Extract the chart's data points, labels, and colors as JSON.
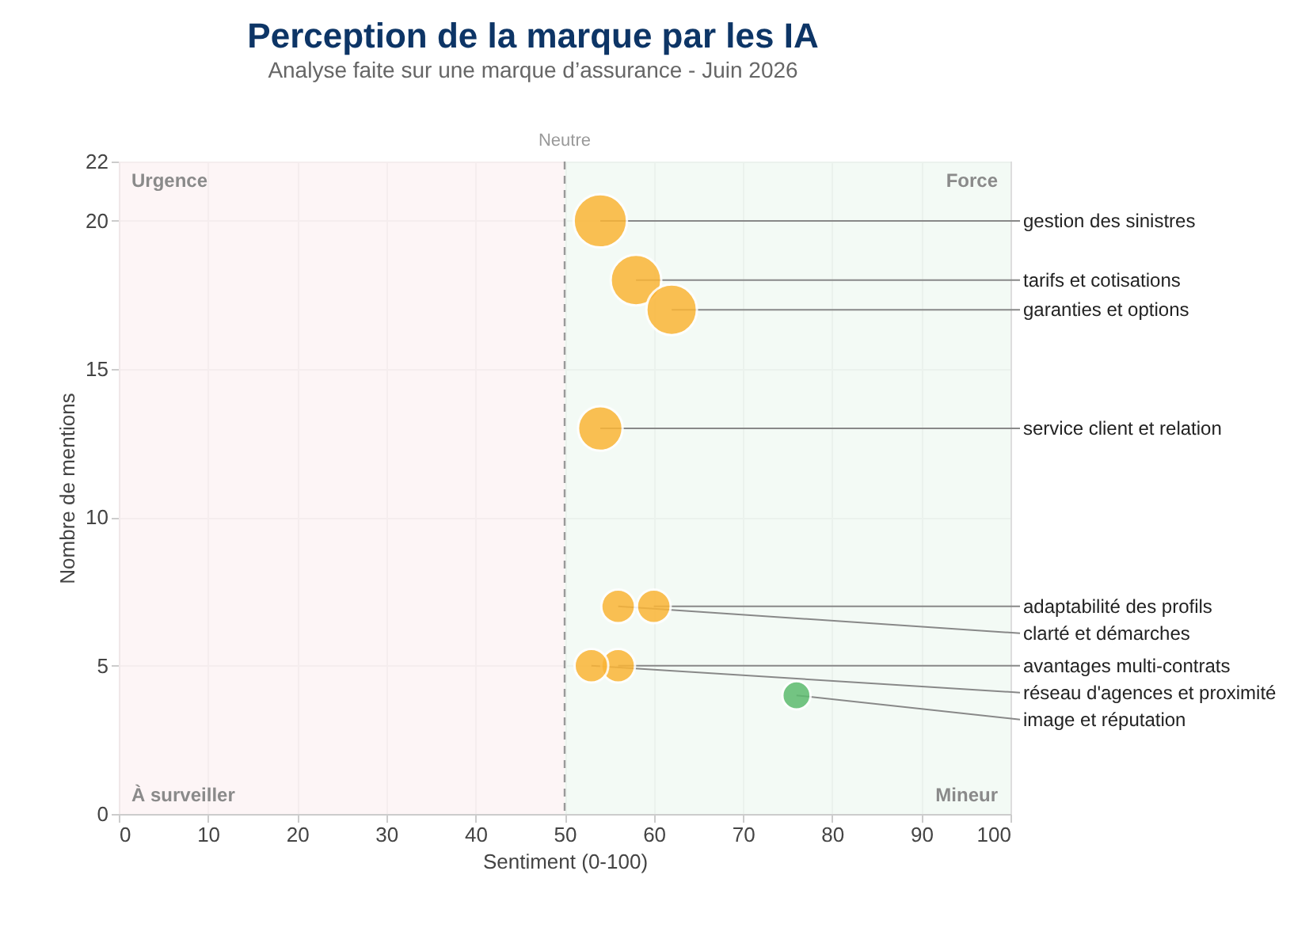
{
  "chart_data": {
    "type": "bubble",
    "title": "Perception de la marque par les IA",
    "subtitle": "Analyse faite sur une marque d’assurance - Juin 2026",
    "xlabel": "Sentiment (0-100)",
    "ylabel": "Nombre de mentions",
    "xlim": [
      0,
      100
    ],
    "xticks": [
      0,
      10,
      20,
      30,
      40,
      50,
      60,
      70,
      80,
      90,
      100
    ],
    "ylim": [
      0,
      22
    ],
    "yticks": [
      0,
      5,
      10,
      15,
      20,
      22
    ],
    "grid": true,
    "legend": false,
    "marker": "circle",
    "series": [
      {
        "name": "gestion des sinistres",
        "color": "#fbb536",
        "x": [
          54
        ],
        "values": [
          20
        ],
        "sizes": [
          1
        ]
      },
      {
        "name": "tarifs et cotisations",
        "color": "#fbb536",
        "x": [
          58
        ],
        "values": [
          18
        ],
        "sizes": [
          0.9
        ]
      },
      {
        "name": "garanties et options",
        "color": "#fbb536",
        "x": [
          62
        ],
        "values": [
          17
        ],
        "sizes": [
          0.9
        ]
      },
      {
        "name": "service client et relation",
        "color": "#fbb536",
        "x": [
          54
        ],
        "values": [
          13
        ],
        "sizes": [
          0.7
        ]
      },
      {
        "name": "adaptabilité des profils",
        "color": "#fbb536",
        "x": [
          60
        ],
        "values": [
          7
        ],
        "sizes": [
          0.4
        ]
      },
      {
        "name": "clarté et démarches",
        "color": "#fbb536",
        "x": [
          56
        ],
        "values": [
          7
        ],
        "sizes": [
          0.4
        ]
      },
      {
        "name": "avantages multi-contrats",
        "color": "#fbb536",
        "x": [
          56
        ],
        "values": [
          5
        ],
        "sizes": [
          0.4
        ]
      },
      {
        "name": "réseau d'agences et proximité",
        "color": "#fbb536",
        "x": [
          53
        ],
        "values": [
          5
        ],
        "sizes": [
          0.4
        ]
      },
      {
        "name": "image et réputation",
        "color": "#5dbb6f",
        "x": [
          76
        ],
        "values": [
          4
        ],
        "sizes": [
          0.28
        ]
      }
    ],
    "bands": [
      {
        "axis": "x",
        "from": 0,
        "to": 50,
        "color": "#fcf1f3"
      },
      {
        "axis": "x",
        "from": 50,
        "to": 100,
        "color": "#eff8f1"
      }
    ],
    "ref_lines": [
      {
        "axis": "x",
        "value": 50,
        "label": "Neutre",
        "color": "#999999",
        "line_style": "dashed"
      }
    ],
    "annotations": [
      "Urgence",
      "Force",
      "À surveiller",
      "Mineur"
    ]
  }
}
